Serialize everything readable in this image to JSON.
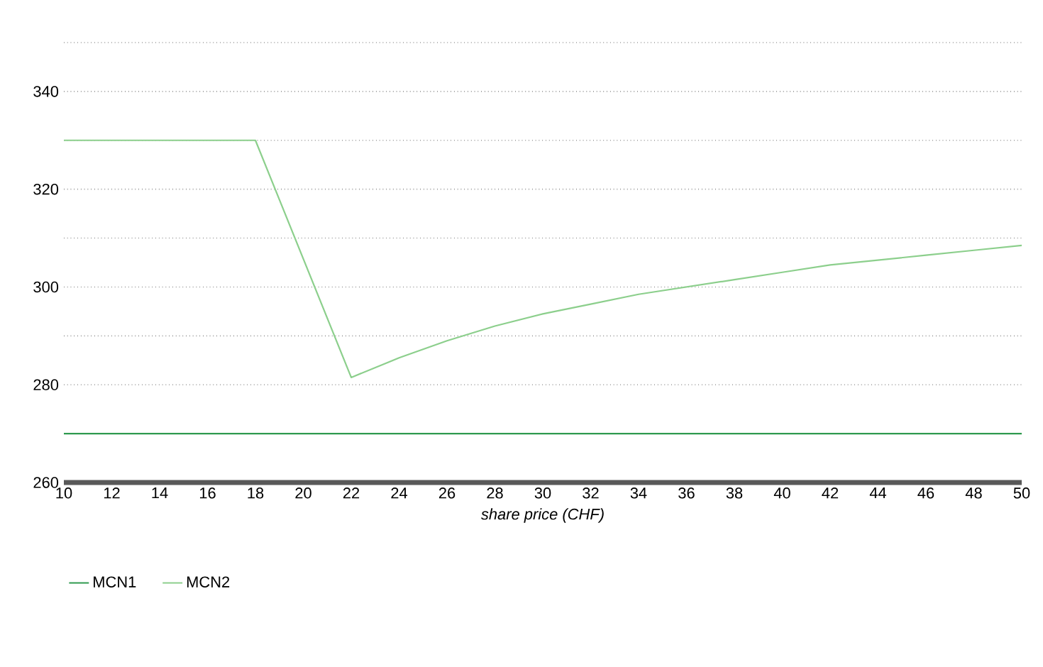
{
  "chart_data": {
    "type": "line",
    "xlabel": "*share price (CHF)*",
    "xlim": [
      10,
      50
    ],
    "xticks": [
      10,
      12,
      14,
      16,
      18,
      20,
      22,
      24,
      26,
      28,
      30,
      32,
      34,
      36,
      38,
      40,
      42,
      44,
      46,
      48,
      50
    ],
    "ylim": [
      260,
      350
    ],
    "yticks": [
      260,
      {
        "value": 270,
        "label": null
      },
      280,
      {
        "value": 290,
        "label": null
      },
      300,
      {
        "value": 310,
        "label": null
      },
      320,
      {
        "value": 330,
        "label": null
      },
      340,
      {
        "value": 350,
        "label": null
      }
    ],
    "grid": "y",
    "legend": "bottom",
    "marker": "none",
    "line_style": "solid",
    "series": [
      {
        "name": "MCN1",
        "color": "#2f9a4f",
        "x": [
          10,
          50
        ],
        "values": [
          270,
          270
        ]
      },
      {
        "name": "MCN2",
        "color": "#8ccf8c",
        "x": [
          10,
          18,
          22,
          24,
          26,
          28,
          30,
          32,
          34,
          36,
          38,
          40,
          42,
          44,
          46,
          48,
          50
        ],
        "values": [
          330,
          330,
          281.5,
          285.5,
          289,
          292,
          294.5,
          296.5,
          298.5,
          300,
          301.5,
          303,
          304.5,
          305.5,
          306.5,
          307.5,
          308.5
        ]
      }
    ]
  }
}
